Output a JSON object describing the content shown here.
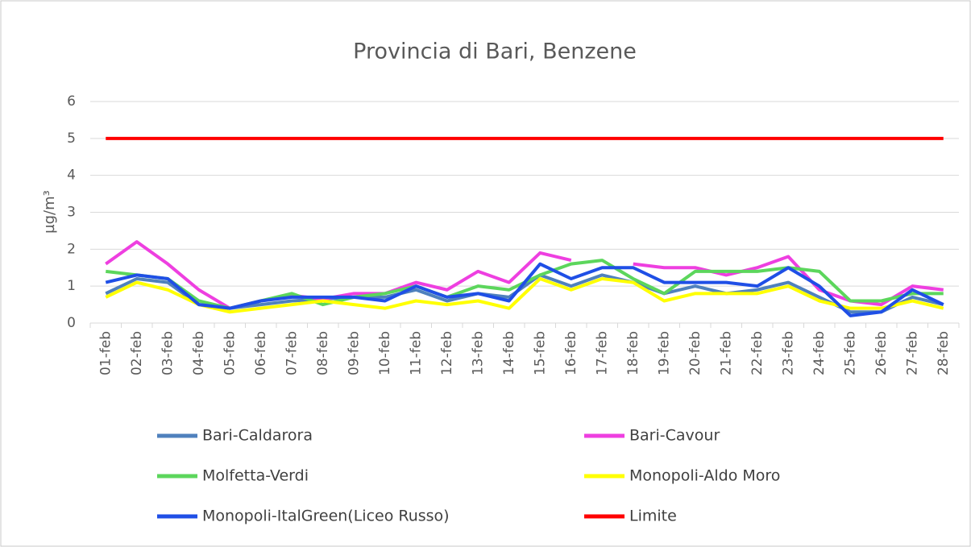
{
  "chart_data": {
    "type": "line",
    "title": "Provincia di Bari, Benzene",
    "y_label": "µg/m³",
    "categories": [
      "01-feb",
      "02-feb",
      "03-feb",
      "04-feb",
      "05-feb",
      "06-feb",
      "07-feb",
      "08-feb",
      "09-feb",
      "10-feb",
      "11-feb",
      "12-feb",
      "13-feb",
      "14-feb",
      "15-feb",
      "16-feb",
      "17-feb",
      "18-feb",
      "19-feb",
      "20-feb",
      "21-feb",
      "22-feb",
      "23-feb",
      "24-feb",
      "25-feb",
      "26-feb",
      "27-feb",
      "28-feb"
    ],
    "series": [
      {
        "name": "Bari-Caldarora",
        "color": "#4f81bd",
        "values": [
          0.8,
          1.2,
          1.1,
          0.5,
          0.4,
          0.5,
          0.6,
          0.65,
          0.7,
          0.7,
          0.9,
          0.6,
          0.8,
          0.7,
          1.3,
          1.0,
          1.3,
          1.1,
          0.8,
          1.0,
          0.8,
          0.9,
          1.1,
          0.7,
          0.3,
          0.3,
          0.7,
          0.5
        ]
      },
      {
        "name": "Bari-Cavour",
        "color": "#ee3fe0",
        "values": [
          1.6,
          2.2,
          1.6,
          0.9,
          0.4,
          0.6,
          0.75,
          0.65,
          0.8,
          0.8,
          1.1,
          0.9,
          1.4,
          1.1,
          1.9,
          1.7,
          null,
          1.6,
          1.5,
          1.5,
          1.3,
          1.5,
          1.8,
          0.9,
          0.6,
          0.5,
          1.0,
          0.9
        ]
      },
      {
        "name": "Molfetta-Verdi",
        "color": "#5cd65c",
        "values": [
          1.4,
          1.3,
          1.2,
          0.6,
          0.4,
          0.6,
          0.8,
          0.5,
          0.7,
          0.8,
          1.0,
          0.7,
          1.0,
          0.9,
          1.3,
          1.6,
          1.7,
          1.2,
          0.8,
          1.4,
          1.4,
          1.4,
          1.5,
          1.4,
          0.6,
          0.6,
          0.8,
          0.8
        ]
      },
      {
        "name": "Monopoli-Aldo Moro",
        "color": "#ffff00",
        "values": [
          0.7,
          1.1,
          0.9,
          0.5,
          0.3,
          0.4,
          0.5,
          0.6,
          0.5,
          0.4,
          0.6,
          0.5,
          0.6,
          0.4,
          1.2,
          0.9,
          1.2,
          1.1,
          0.6,
          0.8,
          0.8,
          0.8,
          1.0,
          0.6,
          0.4,
          0.4,
          0.6,
          0.4
        ]
      },
      {
        "name": "Monopoli-ItalGreen(Liceo Russo)",
        "color": "#1f4fe6",
        "values": [
          1.1,
          1.3,
          1.2,
          0.5,
          0.4,
          0.6,
          0.7,
          0.7,
          0.7,
          0.6,
          1.0,
          0.7,
          0.8,
          0.6,
          1.6,
          1.2,
          1.5,
          1.5,
          1.1,
          1.1,
          1.1,
          1.0,
          1.5,
          1.0,
          0.2,
          0.3,
          0.9,
          0.5
        ]
      },
      {
        "name": "Limite",
        "color": "#ff0000",
        "values": [
          5,
          5,
          5,
          5,
          5,
          5,
          5,
          5,
          5,
          5,
          5,
          5,
          5,
          5,
          5,
          5,
          5,
          5,
          5,
          5,
          5,
          5,
          5,
          5,
          5,
          5,
          5,
          5
        ]
      }
    ],
    "ylim": [
      0,
      6
    ],
    "yticks": [
      0,
      1,
      2,
      3,
      4,
      5,
      6
    ],
    "grid": true
  }
}
